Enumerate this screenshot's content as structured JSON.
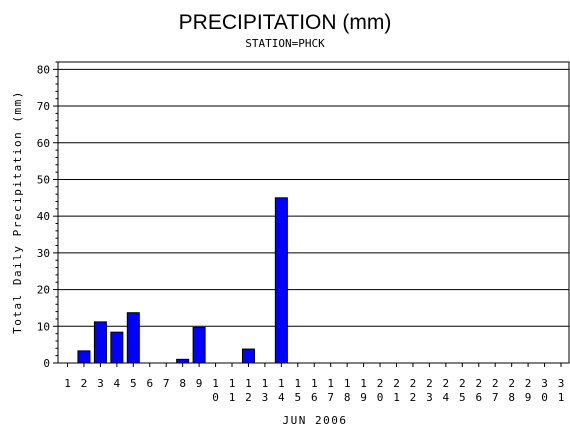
{
  "chart_data": {
    "type": "bar",
    "title": "PRECIPITATION (mm)",
    "subtitle": "STATION=PHCK",
    "xlabel": "JUN 2006",
    "ylabel": "Total Daily Precipitation (mm)",
    "ylim": [
      0,
      82
    ],
    "yticks": [
      0,
      10,
      20,
      30,
      40,
      50,
      60,
      70,
      80
    ],
    "grid": "horizontal",
    "bar_color": "#0000ff",
    "categories": [
      "1",
      "2",
      "3",
      "4",
      "5",
      "6",
      "7",
      "8",
      "9",
      "10",
      "11",
      "12",
      "13",
      "14",
      "15",
      "16",
      "17",
      "18",
      "19",
      "20",
      "21",
      "22",
      "23",
      "24",
      "25",
      "26",
      "27",
      "28",
      "29",
      "30",
      "31"
    ],
    "values": [
      0,
      3.3,
      11.2,
      8.4,
      13.7,
      0,
      0,
      1.0,
      9.7,
      0,
      0,
      3.8,
      0,
      45.0,
      0,
      0,
      0,
      0,
      0,
      0,
      0,
      0,
      0,
      0,
      0,
      0,
      0,
      0,
      0,
      0,
      0
    ]
  }
}
